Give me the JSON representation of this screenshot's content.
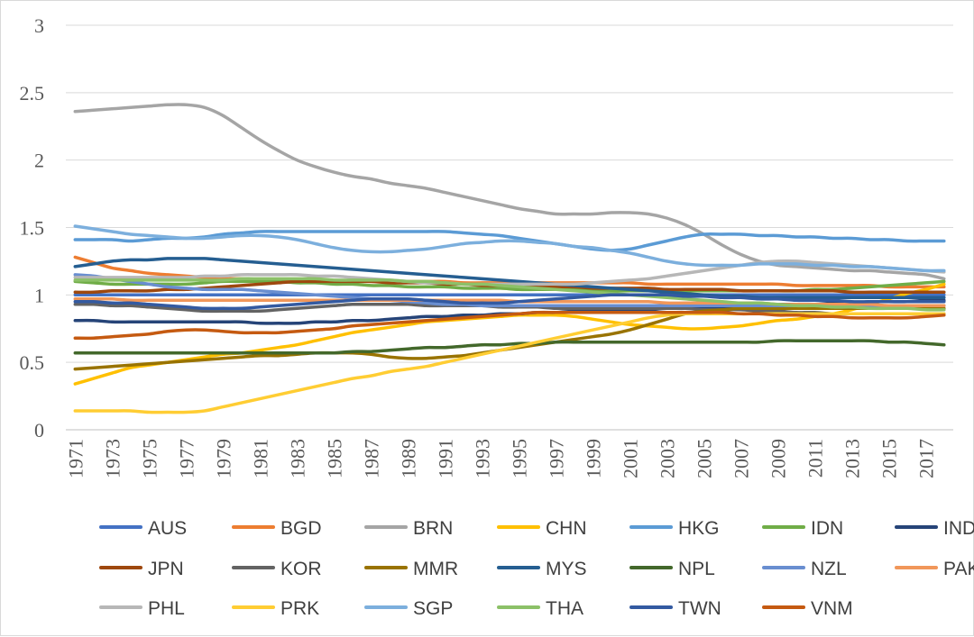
{
  "chart_data": {
    "type": "line",
    "title": "",
    "xlabel": "",
    "ylabel": "",
    "ylim": [
      0,
      3
    ],
    "yticks": [
      0,
      0.5,
      1,
      1.5,
      2,
      2.5,
      3
    ],
    "ytick_labels": [
      "0",
      "0.5",
      "1",
      "1.5",
      "2",
      "2.5",
      "3"
    ],
    "x": [
      1971,
      1972,
      1973,
      1974,
      1975,
      1976,
      1977,
      1978,
      1979,
      1980,
      1981,
      1982,
      1983,
      1984,
      1985,
      1986,
      1987,
      1988,
      1989,
      1990,
      1991,
      1992,
      1993,
      1994,
      1995,
      1996,
      1997,
      1998,
      1999,
      2000,
      2001,
      2002,
      2003,
      2004,
      2005,
      2006,
      2007,
      2008,
      2009,
      2010,
      2011,
      2012,
      2013,
      2014,
      2015,
      2016,
      2017,
      2018
    ],
    "xtick_labels": [
      "1971",
      "1973",
      "1975",
      "1977",
      "1979",
      "1981",
      "1983",
      "1985",
      "1987",
      "1989",
      "1991",
      "1993",
      "1995",
      "1997",
      "1999",
      "2001",
      "2003",
      "2005",
      "2007",
      "2009",
      "2011",
      "2013",
      "2015",
      "2017"
    ],
    "grid": true,
    "legend_position": "bottom",
    "series": [
      {
        "name": "AUS",
        "color": "#4472C4",
        "values": [
          1.0,
          1.0,
          1.0,
          1.0,
          1.0,
          1.0,
          1.0,
          1.0,
          1.0,
          1.0,
          1.0,
          1.0,
          1.0,
          1.0,
          1.0,
          1.0,
          1.0,
          1.0,
          1.0,
          1.0,
          1.0,
          1.0,
          1.0,
          1.0,
          1.0,
          1.0,
          1.0,
          1.0,
          1.0,
          1.0,
          1.0,
          1.0,
          1.0,
          1.0,
          1.0,
          1.0,
          1.0,
          1.0,
          1.0,
          1.0,
          1.0,
          1.0,
          1.0,
          1.0,
          1.0,
          1.0,
          1.0,
          1.0
        ]
      },
      {
        "name": "BGD",
        "color": "#ED7D31",
        "values": [
          1.28,
          1.24,
          1.2,
          1.18,
          1.16,
          1.15,
          1.14,
          1.13,
          1.12,
          1.12,
          1.11,
          1.11,
          1.1,
          1.1,
          1.1,
          1.1,
          1.1,
          1.1,
          1.1,
          1.1,
          1.1,
          1.09,
          1.09,
          1.09,
          1.09,
          1.09,
          1.09,
          1.09,
          1.09,
          1.09,
          1.09,
          1.08,
          1.08,
          1.08,
          1.08,
          1.08,
          1.08,
          1.08,
          1.08,
          1.07,
          1.07,
          1.07,
          1.07,
          1.07,
          1.06,
          1.06,
          1.06,
          1.06
        ]
      },
      {
        "name": "BRN",
        "color": "#A5A5A5",
        "values": [
          2.36,
          2.37,
          2.38,
          2.39,
          2.4,
          2.41,
          2.41,
          2.39,
          2.33,
          2.24,
          2.15,
          2.07,
          2.0,
          1.95,
          1.91,
          1.88,
          1.86,
          1.83,
          1.81,
          1.79,
          1.76,
          1.73,
          1.7,
          1.67,
          1.64,
          1.62,
          1.6,
          1.6,
          1.6,
          1.61,
          1.61,
          1.6,
          1.57,
          1.52,
          1.45,
          1.37,
          1.3,
          1.25,
          1.22,
          1.21,
          1.2,
          1.19,
          1.18,
          1.18,
          1.17,
          1.16,
          1.15,
          1.12
        ]
      },
      {
        "name": "CHN",
        "color": "#FFC000",
        "values": [
          0.34,
          0.38,
          0.42,
          0.46,
          0.48,
          0.5,
          0.52,
          0.54,
          0.56,
          0.57,
          0.59,
          0.61,
          0.63,
          0.66,
          0.69,
          0.72,
          0.74,
          0.76,
          0.78,
          0.8,
          0.81,
          0.82,
          0.83,
          0.84,
          0.85,
          0.85,
          0.85,
          0.84,
          0.82,
          0.8,
          0.78,
          0.77,
          0.76,
          0.75,
          0.75,
          0.76,
          0.77,
          0.79,
          0.81,
          0.82,
          0.84,
          0.86,
          0.89,
          0.93,
          0.97,
          1.01,
          1.04,
          1.08
        ]
      },
      {
        "name": "HKG",
        "color": "#5B9BD5",
        "values": [
          1.41,
          1.41,
          1.41,
          1.4,
          1.41,
          1.42,
          1.42,
          1.43,
          1.45,
          1.46,
          1.47,
          1.47,
          1.47,
          1.47,
          1.47,
          1.47,
          1.47,
          1.47,
          1.47,
          1.47,
          1.47,
          1.46,
          1.45,
          1.44,
          1.42,
          1.4,
          1.38,
          1.36,
          1.34,
          1.33,
          1.34,
          1.37,
          1.4,
          1.43,
          1.45,
          1.45,
          1.45,
          1.44,
          1.44,
          1.43,
          1.43,
          1.42,
          1.42,
          1.41,
          1.41,
          1.4,
          1.4,
          1.4
        ]
      },
      {
        "name": "IDN",
        "color": "#70AD47",
        "values": [
          1.1,
          1.09,
          1.08,
          1.08,
          1.08,
          1.08,
          1.08,
          1.09,
          1.1,
          1.1,
          1.1,
          1.1,
          1.09,
          1.09,
          1.08,
          1.08,
          1.07,
          1.07,
          1.06,
          1.06,
          1.06,
          1.05,
          1.05,
          1.05,
          1.04,
          1.04,
          1.04,
          1.04,
          1.04,
          1.03,
          1.03,
          1.03,
          1.03,
          1.03,
          1.03,
          1.03,
          1.03,
          1.03,
          1.03,
          1.03,
          1.04,
          1.04,
          1.05,
          1.06,
          1.07,
          1.08,
          1.09,
          1.1
        ]
      },
      {
        "name": "IND",
        "color": "#264478",
        "values": [
          0.81,
          0.81,
          0.8,
          0.8,
          0.8,
          0.8,
          0.8,
          0.8,
          0.8,
          0.8,
          0.79,
          0.79,
          0.79,
          0.8,
          0.8,
          0.81,
          0.81,
          0.82,
          0.83,
          0.84,
          0.84,
          0.85,
          0.85,
          0.86,
          0.86,
          0.87,
          0.87,
          0.88,
          0.88,
          0.89,
          0.89,
          0.89,
          0.9,
          0.9,
          0.91,
          0.91,
          0.92,
          0.92,
          0.93,
          0.93,
          0.93,
          0.94,
          0.94,
          0.95,
          0.95,
          0.95,
          0.96,
          0.96
        ]
      },
      {
        "name": "JPN",
        "color": "#9E480E",
        "values": [
          1.02,
          1.02,
          1.03,
          1.03,
          1.03,
          1.04,
          1.04,
          1.05,
          1.06,
          1.07,
          1.08,
          1.09,
          1.1,
          1.1,
          1.1,
          1.1,
          1.1,
          1.09,
          1.09,
          1.09,
          1.08,
          1.08,
          1.07,
          1.07,
          1.07,
          1.06,
          1.06,
          1.06,
          1.05,
          1.05,
          1.05,
          1.05,
          1.04,
          1.04,
          1.04,
          1.04,
          1.03,
          1.03,
          1.03,
          1.03,
          1.03,
          1.03,
          1.02,
          1.02,
          1.02,
          1.02,
          1.02,
          1.02
        ]
      },
      {
        "name": "KOR",
        "color": "#636363",
        "values": [
          0.93,
          0.93,
          0.92,
          0.92,
          0.91,
          0.9,
          0.89,
          0.88,
          0.88,
          0.88,
          0.88,
          0.89,
          0.9,
          0.91,
          0.92,
          0.93,
          0.93,
          0.93,
          0.93,
          0.92,
          0.92,
          0.92,
          0.92,
          0.91,
          0.91,
          0.91,
          0.9,
          0.9,
          0.9,
          0.9,
          0.9,
          0.9,
          0.9,
          0.9,
          0.89,
          0.89,
          0.89,
          0.88,
          0.88,
          0.87,
          0.87,
          0.86,
          0.86,
          0.86,
          0.86,
          0.86,
          0.86,
          0.86
        ]
      },
      {
        "name": "MMR",
        "color": "#997300",
        "values": [
          0.45,
          0.46,
          0.47,
          0.48,
          0.49,
          0.5,
          0.51,
          0.52,
          0.53,
          0.54,
          0.55,
          0.55,
          0.56,
          0.57,
          0.57,
          0.57,
          0.56,
          0.54,
          0.53,
          0.53,
          0.54,
          0.55,
          0.57,
          0.59,
          0.61,
          0.63,
          0.65,
          0.67,
          0.69,
          0.71,
          0.74,
          0.78,
          0.82,
          0.86,
          0.88,
          0.89,
          0.9,
          0.9,
          0.9,
          0.9,
          0.9,
          0.9,
          0.9,
          0.9,
          0.9,
          0.9,
          0.9,
          0.9
        ]
      },
      {
        "name": "MYS",
        "color": "#255E91",
        "values": [
          1.21,
          1.23,
          1.25,
          1.26,
          1.26,
          1.27,
          1.27,
          1.27,
          1.26,
          1.25,
          1.24,
          1.23,
          1.22,
          1.21,
          1.2,
          1.19,
          1.18,
          1.17,
          1.16,
          1.15,
          1.14,
          1.13,
          1.12,
          1.11,
          1.1,
          1.09,
          1.08,
          1.07,
          1.06,
          1.05,
          1.04,
          1.03,
          1.02,
          1.01,
          1.0,
          0.99,
          0.99,
          0.98,
          0.98,
          0.98,
          0.98,
          0.98,
          0.98,
          0.98,
          0.98,
          0.98,
          0.98,
          0.98
        ]
      },
      {
        "name": "NPL",
        "color": "#43682B",
        "values": [
          0.57,
          0.57,
          0.57,
          0.57,
          0.57,
          0.57,
          0.57,
          0.57,
          0.57,
          0.57,
          0.57,
          0.57,
          0.57,
          0.57,
          0.57,
          0.58,
          0.58,
          0.59,
          0.6,
          0.61,
          0.61,
          0.62,
          0.63,
          0.63,
          0.64,
          0.64,
          0.65,
          0.65,
          0.65,
          0.65,
          0.65,
          0.65,
          0.65,
          0.65,
          0.65,
          0.65,
          0.65,
          0.65,
          0.66,
          0.66,
          0.66,
          0.66,
          0.66,
          0.66,
          0.65,
          0.65,
          0.64,
          0.63
        ]
      },
      {
        "name": "NZL",
        "color": "#698ED0",
        "values": [
          1.15,
          1.14,
          1.12,
          1.1,
          1.08,
          1.06,
          1.05,
          1.04,
          1.04,
          1.04,
          1.03,
          1.02,
          1.01,
          1.0,
          0.99,
          0.98,
          0.97,
          0.96,
          0.95,
          0.94,
          0.93,
          0.93,
          0.92,
          0.92,
          0.92,
          0.92,
          0.92,
          0.92,
          0.92,
          0.92,
          0.92,
          0.92,
          0.92,
          0.92,
          0.92,
          0.92,
          0.92,
          0.92,
          0.92,
          0.92,
          0.92,
          0.92,
          0.92,
          0.92,
          0.92,
          0.92,
          0.92,
          0.92
        ]
      },
      {
        "name": "PAK",
        "color": "#F1975A",
        "values": [
          0.97,
          0.97,
          0.97,
          0.96,
          0.96,
          0.96,
          0.96,
          0.96,
          0.96,
          0.96,
          0.96,
          0.96,
          0.96,
          0.96,
          0.96,
          0.96,
          0.96,
          0.96,
          0.96,
          0.96,
          0.96,
          0.96,
          0.96,
          0.96,
          0.95,
          0.95,
          0.95,
          0.95,
          0.95,
          0.95,
          0.95,
          0.95,
          0.94,
          0.94,
          0.94,
          0.94,
          0.94,
          0.94,
          0.93,
          0.93,
          0.93,
          0.93,
          0.93,
          0.93,
          0.92,
          0.92,
          0.92,
          0.92
        ]
      },
      {
        "name": "PHL",
        "color": "#B7B7B7",
        "values": [
          1.13,
          1.13,
          1.13,
          1.13,
          1.13,
          1.13,
          1.13,
          1.14,
          1.14,
          1.15,
          1.15,
          1.15,
          1.15,
          1.14,
          1.14,
          1.13,
          1.12,
          1.11,
          1.1,
          1.09,
          1.09,
          1.08,
          1.08,
          1.08,
          1.08,
          1.08,
          1.08,
          1.08,
          1.09,
          1.1,
          1.11,
          1.12,
          1.14,
          1.16,
          1.18,
          1.2,
          1.22,
          1.24,
          1.25,
          1.25,
          1.24,
          1.23,
          1.22,
          1.21,
          1.2,
          1.19,
          1.18,
          1.17
        ]
      },
      {
        "name": "PRK",
        "color": "#FFCD33",
        "values": [
          0.14,
          0.14,
          0.14,
          0.14,
          0.13,
          0.13,
          0.13,
          0.14,
          0.17,
          0.2,
          0.23,
          0.26,
          0.29,
          0.32,
          0.35,
          0.38,
          0.4,
          0.43,
          0.45,
          0.47,
          0.5,
          0.53,
          0.56,
          0.59,
          0.62,
          0.65,
          0.68,
          0.71,
          0.74,
          0.77,
          0.8,
          0.83,
          0.85,
          0.86,
          0.86,
          0.86,
          0.86,
          0.86,
          0.86,
          0.86,
          0.86,
          0.86,
          0.86,
          0.86,
          0.86,
          0.86,
          0.86,
          0.86
        ]
      },
      {
        "name": "SGP",
        "color": "#7CAFDD",
        "values": [
          1.51,
          1.49,
          1.47,
          1.45,
          1.44,
          1.43,
          1.42,
          1.42,
          1.43,
          1.44,
          1.44,
          1.43,
          1.41,
          1.38,
          1.35,
          1.33,
          1.32,
          1.32,
          1.33,
          1.34,
          1.36,
          1.38,
          1.39,
          1.4,
          1.4,
          1.39,
          1.38,
          1.36,
          1.35,
          1.33,
          1.31,
          1.28,
          1.25,
          1.23,
          1.22,
          1.22,
          1.22,
          1.23,
          1.23,
          1.23,
          1.22,
          1.22,
          1.21,
          1.21,
          1.2,
          1.19,
          1.18,
          1.18
        ]
      },
      {
        "name": "THA",
        "color": "#8CC168",
        "values": [
          1.11,
          1.11,
          1.11,
          1.11,
          1.11,
          1.11,
          1.11,
          1.11,
          1.11,
          1.12,
          1.12,
          1.12,
          1.12,
          1.12,
          1.11,
          1.11,
          1.11,
          1.11,
          1.1,
          1.1,
          1.09,
          1.08,
          1.08,
          1.07,
          1.06,
          1.05,
          1.04,
          1.03,
          1.02,
          1.01,
          1.0,
          0.99,
          0.98,
          0.97,
          0.96,
          0.95,
          0.94,
          0.94,
          0.93,
          0.92,
          0.92,
          0.91,
          0.91,
          0.9,
          0.9,
          0.9,
          0.89,
          0.89
        ]
      },
      {
        "name": "TWN",
        "color": "#335AA1",
        "values": [
          0.95,
          0.95,
          0.94,
          0.94,
          0.93,
          0.92,
          0.91,
          0.9,
          0.9,
          0.9,
          0.91,
          0.92,
          0.93,
          0.94,
          0.95,
          0.96,
          0.97,
          0.97,
          0.97,
          0.96,
          0.95,
          0.94,
          0.94,
          0.94,
          0.95,
          0.96,
          0.97,
          0.98,
          0.99,
          1.0,
          1.0,
          1.0,
          1.0,
          0.99,
          0.99,
          0.98,
          0.98,
          0.97,
          0.97,
          0.96,
          0.96,
          0.96,
          0.95,
          0.95,
          0.95,
          0.95,
          0.95,
          0.95
        ]
      },
      {
        "name": "VNM",
        "color": "#C55A11",
        "values": [
          0.68,
          0.68,
          0.69,
          0.7,
          0.71,
          0.73,
          0.74,
          0.74,
          0.73,
          0.72,
          0.72,
          0.72,
          0.73,
          0.74,
          0.75,
          0.77,
          0.78,
          0.79,
          0.8,
          0.81,
          0.82,
          0.83,
          0.84,
          0.85,
          0.86,
          0.87,
          0.87,
          0.87,
          0.87,
          0.87,
          0.87,
          0.87,
          0.87,
          0.87,
          0.87,
          0.87,
          0.86,
          0.86,
          0.85,
          0.85,
          0.84,
          0.84,
          0.83,
          0.83,
          0.83,
          0.83,
          0.84,
          0.85
        ]
      }
    ]
  }
}
